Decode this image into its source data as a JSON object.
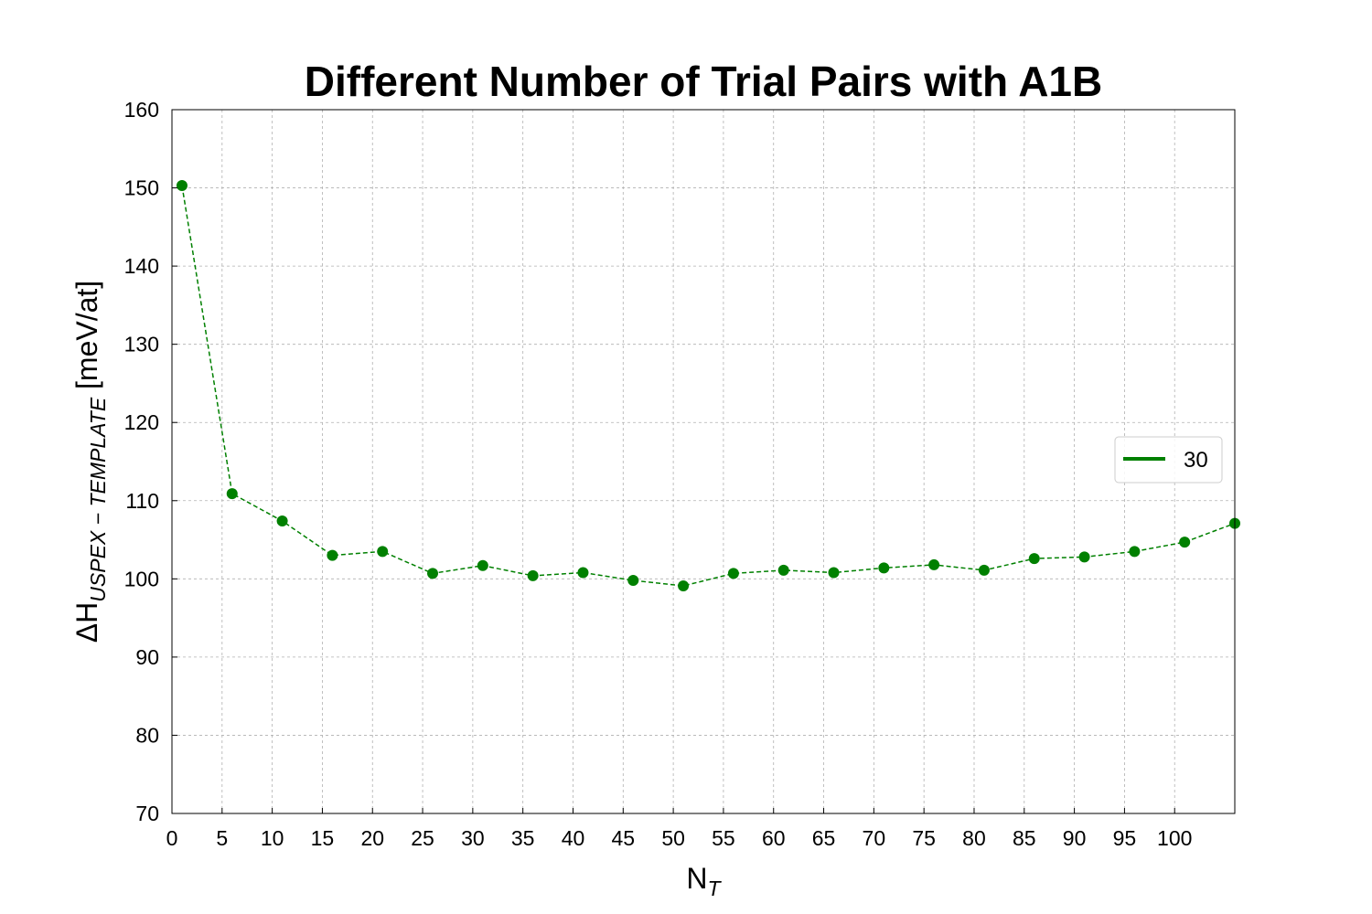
{
  "chart_data": {
    "type": "line",
    "title": "Different Number of Trial Pairs with A1B",
    "xlabel": {
      "main": "N",
      "sub": "T"
    },
    "ylabel": {
      "delta": "Δ",
      "main": "H",
      "sub": "USPEX − TEMPLATE",
      "unit": " [meV/at]"
    },
    "x": [
      1,
      6,
      11,
      16,
      21,
      26,
      31,
      36,
      41,
      46,
      51,
      56,
      61,
      66,
      71,
      76,
      81,
      86,
      91,
      96,
      101,
      106
    ],
    "series": [
      {
        "name": "30",
        "color": "#008000",
        "values": [
          150.3,
          110.9,
          107.4,
          103.0,
          103.5,
          100.7,
          101.7,
          100.4,
          100.8,
          99.8,
          99.1,
          100.7,
          101.1,
          100.8,
          101.4,
          101.8,
          101.1,
          102.6,
          102.8,
          103.5,
          104.7,
          107.1
        ]
      }
    ],
    "xlim": [
      0,
      106
    ],
    "ylim": [
      70,
      160
    ],
    "xticks": [
      0,
      5,
      10,
      15,
      20,
      25,
      30,
      35,
      40,
      45,
      50,
      55,
      60,
      65,
      70,
      75,
      80,
      85,
      90,
      95,
      100
    ],
    "yticks": [
      70,
      80,
      90,
      100,
      110,
      120,
      130,
      140,
      150,
      160
    ],
    "grid": true,
    "legend_position": "center-right"
  }
}
